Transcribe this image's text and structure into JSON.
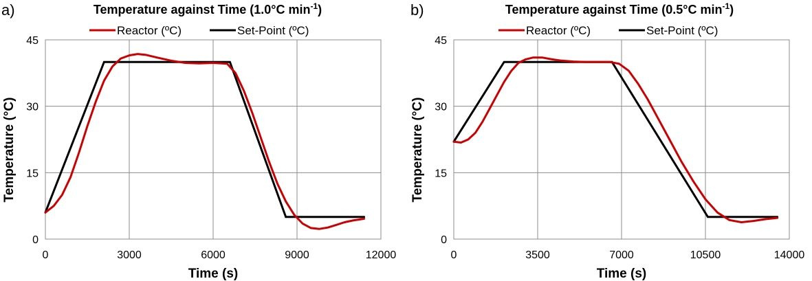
{
  "chart_data": [
    {
      "type": "line",
      "panel_label": "a)",
      "title": "Temperature against Time (1.0°C min",
      "title_superscript": "-1",
      "title_suffix": ")",
      "xlabel": "Time (s)",
      "ylabel": "Temperature (°C)",
      "xlim": [
        0,
        12000
      ],
      "ylim": [
        0,
        45
      ],
      "xticks": [
        0,
        3000,
        6000,
        9000,
        12000
      ],
      "xtick_labels": [
        "0",
        "3000",
        "6000",
        "9000",
        "12000"
      ],
      "yticks": [
        0,
        15,
        30,
        45
      ],
      "ytick_labels": [
        "0",
        "15",
        "30",
        "45"
      ],
      "grid": true,
      "legend_position": "top-center",
      "series": [
        {
          "name": "Reactor (ºC)",
          "color": "#cc0000",
          "x": [
            0,
            300,
            600,
            900,
            1200,
            1500,
            1800,
            2100,
            2400,
            2700,
            3000,
            3300,
            3600,
            4000,
            4500,
            5000,
            5500,
            6000,
            6500,
            6800,
            7100,
            7400,
            7700,
            8000,
            8300,
            8600,
            8900,
            9200,
            9500,
            9800,
            10100,
            10400,
            10700,
            11000,
            11400
          ],
          "y": [
            6,
            7.5,
            10,
            14,
            19.5,
            25.5,
            31,
            35.8,
            39,
            40.8,
            41.5,
            41.8,
            41.6,
            41,
            40.3,
            39.8,
            39.7,
            39.8,
            39.6,
            37.5,
            33.5,
            28.5,
            23,
            17.5,
            12.5,
            8.5,
            5.5,
            3.5,
            2.5,
            2.3,
            2.6,
            3.2,
            3.8,
            4.2,
            4.6
          ]
        },
        {
          "name": "Set-Point (ºC)",
          "color": "#000000",
          "x": [
            0,
            2100,
            6600,
            8600,
            11400
          ],
          "y": [
            6,
            40,
            40,
            5,
            5
          ]
        }
      ]
    },
    {
      "type": "line",
      "panel_label": "b)",
      "title": "Temperature against Time (0.5°C min",
      "title_superscript": "-1",
      "title_suffix": ")",
      "xlabel": "Time (s)",
      "ylabel": "Temperature (°C)",
      "xlim": [
        0,
        14000
      ],
      "ylim": [
        0,
        45
      ],
      "xticks": [
        0,
        3500,
        7000,
        10500,
        14000
      ],
      "xtick_labels": [
        "0",
        "3500",
        "7000",
        "10500",
        "14000"
      ],
      "yticks": [
        0,
        15,
        30,
        45
      ],
      "ytick_labels": [
        "0",
        "15",
        "30",
        "45"
      ],
      "grid": true,
      "legend_position": "top-center",
      "series": [
        {
          "name": "Reactor (ºC)",
          "color": "#cc0000",
          "x": [
            0,
            300,
            600,
            900,
            1200,
            1500,
            1800,
            2100,
            2400,
            2700,
            3000,
            3300,
            3700,
            4100,
            4500,
            5000,
            5500,
            6000,
            6500,
            6900,
            7300,
            7700,
            8100,
            8500,
            9000,
            9500,
            10000,
            10500,
            11000,
            11500,
            12000,
            12500,
            13000,
            13500
          ],
          "y": [
            22,
            21.8,
            22.5,
            24,
            26.5,
            29.5,
            32.5,
            35.5,
            38,
            39.8,
            40.6,
            41,
            41,
            40.6,
            40.3,
            40.1,
            40,
            40,
            40,
            39.6,
            38,
            35,
            31.5,
            27.5,
            22.5,
            17.5,
            13,
            9,
            6,
            4.3,
            3.8,
            4.1,
            4.5,
            4.8
          ]
        },
        {
          "name": "Set-Point (ºC)",
          "color": "#000000",
          "x": [
            0,
            2100,
            6600,
            10600,
            13500
          ],
          "y": [
            22,
            40,
            40,
            5,
            5
          ]
        }
      ]
    }
  ]
}
